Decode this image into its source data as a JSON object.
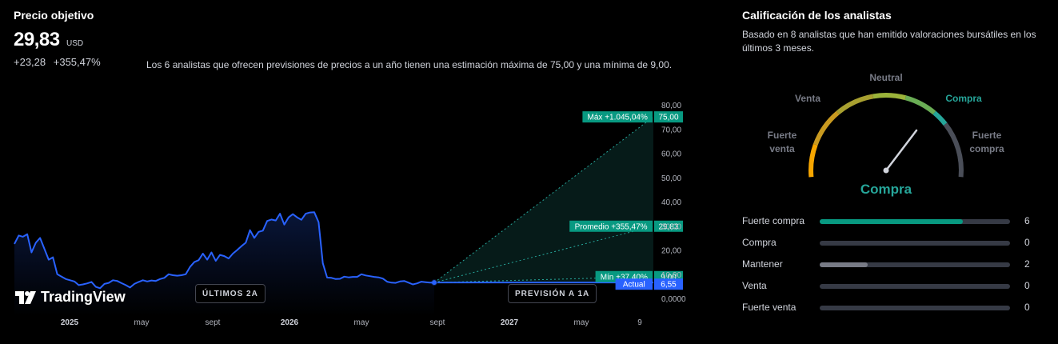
{
  "price_target": {
    "title": "Precio objetivo",
    "value": "29,83",
    "currency": "USD",
    "change_abs": "+23,28",
    "change_pct": "+355,47%",
    "description": "Los 6 analistas que ofrecen previsiones de precios a un año tienen una estimación máxima de 75,00 y una mínima de 9,00."
  },
  "chart_data": {
    "type": "line",
    "x_ticks": [
      "2025",
      "may",
      "sept",
      "2026",
      "may",
      "sept",
      "2027",
      "may",
      "9"
    ],
    "y_ticks": [
      "80,00",
      "70,00",
      "60,00",
      "50,00",
      "40,00",
      "30,00",
      "20,00",
      "10,00",
      "0,0000"
    ],
    "ylim": [
      0,
      80
    ],
    "series": [
      {
        "values": [
          22.5,
          26,
          25.5,
          26.5,
          19,
          23,
          25,
          20.5,
          16,
          17,
          10,
          9,
          8,
          7.5,
          7,
          5.5,
          5.8,
          6.2,
          6.8,
          4.8,
          4.2,
          6,
          6.4,
          7.5,
          7.2,
          6.3,
          5.5,
          4.5,
          6,
          6.8,
          7.5,
          7,
          7.4,
          7.2,
          8,
          8.5,
          10,
          9.6,
          9.4,
          9.6,
          10,
          13,
          15,
          15.8,
          18.5,
          16,
          19,
          15.5,
          18,
          17.5,
          16.5,
          18.5,
          20,
          21.6,
          23,
          28.2,
          25,
          27.5,
          28,
          32,
          32.6,
          32.2,
          35,
          30.5,
          33.5,
          34.8,
          33.5,
          32.5,
          35,
          35.5,
          35.6,
          31.5,
          14.5,
          8.6,
          8.5,
          8,
          8.1,
          9,
          8.7,
          8.9,
          8.9,
          10,
          9.5,
          9.2,
          8.9,
          8.7,
          8.2,
          6.9,
          6.5,
          6.4,
          7,
          7.2,
          6.5,
          5.8,
          6.2,
          6.9,
          6.7,
          6.5,
          6.55
        ]
      }
    ],
    "forecast": {
      "labels": {
        "max": "Máx +1.045,04%",
        "avg": "Promedio +355,47%",
        "min": "Mín +37,40%",
        "current": "Actual"
      },
      "values_text": {
        "max": "75,00",
        "avg": "29,83",
        "min": "9,00",
        "current": "6,55"
      },
      "values": {
        "max": 75,
        "avg": 29.83,
        "min": 9,
        "current": 6.55
      }
    },
    "pills": {
      "past": "ÚLTIMOS 2A",
      "future": "PREVISIÓN A 1A"
    },
    "brand": "TradingView",
    "colors": {
      "line": "#2962ff",
      "forecast": "#26a69a",
      "label_bg": "#089981",
      "current_bg": "#2962ff"
    }
  },
  "analysts": {
    "title": "Calificación de los analistas",
    "description": "Basado en 8 analistas que han emitido valoraciones bursátiles en los últimos 3 meses.",
    "gauge": {
      "labels": {
        "neutral": "Neutral",
        "sell": "Venta",
        "buy": "Compra",
        "strong_sell_1": "Fuerte",
        "strong_sell_2": "venta",
        "strong_buy_1": "Fuerte",
        "strong_buy_2": "compra"
      },
      "result": "Compra",
      "colors": {
        "result": "#26a69a",
        "low": "#f7a600",
        "mid": "#9bb33a",
        "high": "#26a69a"
      }
    },
    "ratings": [
      {
        "label": "Fuerte compra",
        "count": 6,
        "count_text": "6",
        "fraction": 0.75,
        "color": "#089981"
      },
      {
        "label": "Compra",
        "count": 0,
        "count_text": "0",
        "fraction": 0,
        "color": "#089981"
      },
      {
        "label": "Mantener",
        "count": 2,
        "count_text": "2",
        "fraction": 0.25,
        "color": "#787b86"
      },
      {
        "label": "Venta",
        "count": 0,
        "count_text": "0",
        "fraction": 0,
        "color": "#f23645"
      },
      {
        "label": "Fuerte venta",
        "count": 0,
        "count_text": "0",
        "fraction": 0,
        "color": "#f23645"
      }
    ]
  }
}
